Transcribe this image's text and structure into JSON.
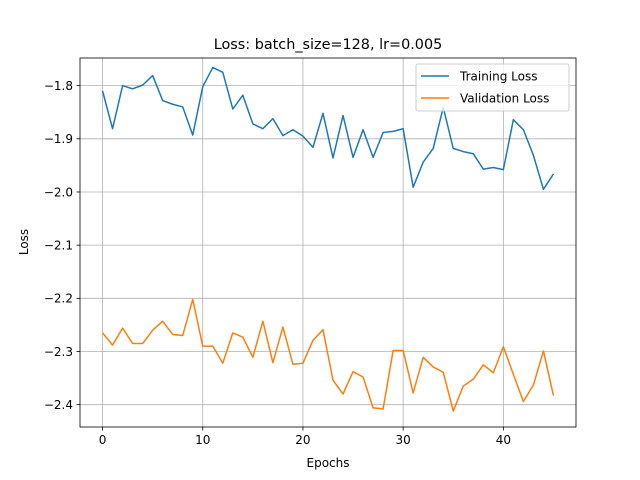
{
  "chart_data": {
    "type": "line",
    "title": "Loss: batch_size=128, lr=0.005",
    "xlabel": "Epochs",
    "ylabel": "Loss",
    "xlim": [
      -2.25,
      47.25
    ],
    "ylim": [
      -2.442,
      -1.748
    ],
    "xticks": [
      0,
      10,
      20,
      30,
      40
    ],
    "xtick_labels": [
      "0",
      "10",
      "20",
      "30",
      "40"
    ],
    "yticks": [
      -2.4,
      -2.3,
      -2.2,
      -2.1,
      -2.0,
      -1.9,
      -1.8
    ],
    "ytick_labels": [
      "−2.4",
      "−2.3",
      "−2.2",
      "−2.1",
      "−2.0",
      "−1.9",
      "−1.8"
    ],
    "grid": true,
    "legend_position": "top-right",
    "x": [
      0,
      1,
      2,
      3,
      4,
      5,
      6,
      7,
      8,
      9,
      10,
      11,
      12,
      13,
      14,
      15,
      16,
      17,
      18,
      19,
      20,
      21,
      22,
      23,
      24,
      25,
      26,
      27,
      28,
      29,
      30,
      31,
      32,
      33,
      34,
      35,
      36,
      37,
      38,
      39,
      40,
      41,
      42,
      43,
      44,
      45
    ],
    "series": [
      {
        "name": "Training Loss",
        "color": "#1f77b4",
        "values": [
          -1.81,
          -1.881,
          -1.8,
          -1.806,
          -1.799,
          -1.781,
          -1.828,
          -1.835,
          -1.84,
          -1.893,
          -1.802,
          -1.766,
          -1.775,
          -1.844,
          -1.818,
          -1.872,
          -1.881,
          -1.862,
          -1.894,
          -1.883,
          -1.895,
          -1.916,
          -1.852,
          -1.936,
          -1.856,
          -1.935,
          -1.883,
          -1.935,
          -1.888,
          -1.886,
          -1.881,
          -1.991,
          -1.944,
          -1.918,
          -1.841,
          -1.918,
          -1.924,
          -1.928,
          -1.957,
          -1.954,
          -1.958,
          -1.864,
          -1.883,
          -1.931,
          -1.995,
          -1.966
        ]
      },
      {
        "name": "Validation Loss",
        "color": "#ff7f0e",
        "values": [
          -2.265,
          -2.288,
          -2.256,
          -2.285,
          -2.285,
          -2.26,
          -2.243,
          -2.268,
          -2.27,
          -2.202,
          -2.29,
          -2.29,
          -2.322,
          -2.265,
          -2.273,
          -2.311,
          -2.243,
          -2.321,
          -2.254,
          -2.324,
          -2.322,
          -2.279,
          -2.259,
          -2.354,
          -2.38,
          -2.338,
          -2.348,
          -2.406,
          -2.408,
          -2.298,
          -2.298,
          -2.378,
          -2.311,
          -2.329,
          -2.339,
          -2.412,
          -2.365,
          -2.352,
          -2.325,
          -2.34,
          -2.291,
          -2.343,
          -2.394,
          -2.363,
          -2.299,
          -2.383
        ]
      }
    ]
  }
}
